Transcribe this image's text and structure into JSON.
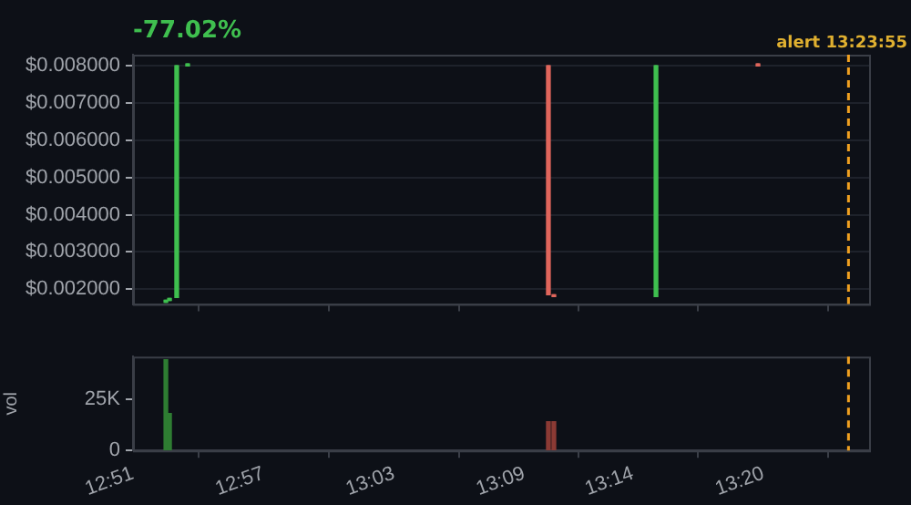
{
  "chart_data": [
    {
      "type": "candlestick",
      "title": "-77.02%",
      "x": [
        12.8752,
        12.878,
        12.8835,
        12.8919,
        13.1685,
        13.1727,
        13.251,
        13.3292
      ],
      "ohlc": [
        [
          0.00165,
          0.0017,
          0.00165,
          0.0017
        ],
        [
          0.0017,
          0.00175,
          0.0017,
          0.00175
        ],
        [
          0.00178,
          0.008,
          0.00178,
          0.008
        ],
        [
          0.008,
          0.008,
          0.008,
          0.008
        ],
        [
          0.008,
          0.008,
          0.00185,
          0.00185
        ],
        [
          0.00185,
          0.00185,
          0.0018,
          0.0018
        ],
        [
          0.0018,
          0.008,
          0.0018,
          0.008
        ],
        [
          0.008,
          0.008,
          0.008,
          0.008
        ]
      ],
      "colors": [
        "#3fbf4f",
        "#3fbf4f",
        "#3fbf4f",
        "#3fbf4f",
        "#e0665c",
        "#e0665c",
        "#3fbf4f",
        "#e0665c"
      ],
      "xlim": [
        12.85,
        13.4144
      ],
      "xticks": [
        {
          "value": 12.85,
          "label": null
        },
        {
          "value": 12.95,
          "label": null
        },
        {
          "value": 13.05,
          "label": null
        },
        {
          "value": 13.15,
          "label": null
        },
        {
          "value": 13.2333,
          "label": null
        },
        {
          "value": 13.3333,
          "label": null
        }
      ],
      "ylim": [
        0.0016,
        0.0083
      ],
      "yticks": [
        {
          "value": 0.002,
          "label": "$0.002000"
        },
        {
          "value": 0.003,
          "label": "$0.003000"
        },
        {
          "value": 0.004,
          "label": "$0.004000"
        },
        {
          "value": 0.005,
          "label": "$0.005000"
        },
        {
          "value": 0.006,
          "label": "$0.006000"
        },
        {
          "value": 0.007,
          "label": "$0.007000"
        },
        {
          "value": 0.008,
          "label": "$0.008000"
        }
      ],
      "tick_labels": "y",
      "grid": "y",
      "ref_lines": [
        {
          "axis": "x",
          "value": 13.3986,
          "label": "alert 13:23:55",
          "color": "#f0a020",
          "line_style": "dashed"
        }
      ]
    },
    {
      "type": "bar",
      "ylabel": "vol",
      "x": [
        12.8752,
        12.878,
        13.1685,
        13.1727
      ],
      "values": [
        44000,
        18000,
        14000,
        14000
      ],
      "colors": [
        "#2e7d32",
        "#2e7d32",
        "#8b3a34",
        "#8b3a34"
      ],
      "xlim": [
        12.85,
        13.4144
      ],
      "xticks": [
        {
          "value": 12.85,
          "label": "12:51"
        },
        {
          "value": 12.95,
          "label": "12:57"
        },
        {
          "value": 13.05,
          "label": "13:03"
        },
        {
          "value": 13.15,
          "label": "13:09"
        },
        {
          "value": 13.2333,
          "label": "13:14"
        },
        {
          "value": 13.3333,
          "label": "13:20"
        }
      ],
      "ylim": [
        0,
        45500
      ],
      "yticks": [
        0,
        {
          "value": 25000,
          "label": "25K"
        }
      ],
      "ref_lines": [
        {
          "axis": "x",
          "value": 13.3986,
          "color": "#f0a020",
          "line_style": "dashed"
        }
      ]
    }
  ]
}
